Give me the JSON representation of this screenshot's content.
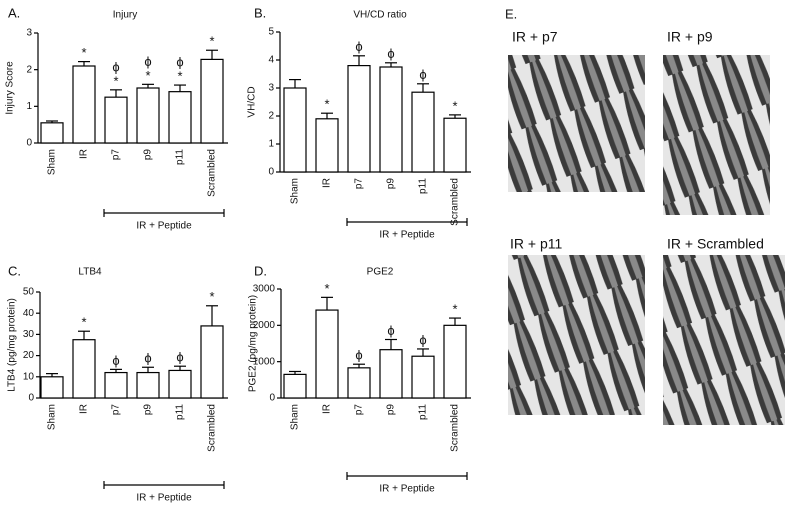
{
  "chart_data": [
    {
      "type": "bar",
      "panel": "A.",
      "title": "Injury",
      "y_label": "Injury Score",
      "categories": [
        "Sham",
        "IR",
        "p7",
        "p9",
        "p11",
        "Scrambled"
      ],
      "values": [
        0.55,
        2.1,
        1.25,
        1.5,
        1.4,
        2.28
      ],
      "errors": [
        0.05,
        0.12,
        0.2,
        0.1,
        0.18,
        0.25
      ],
      "annotations": [
        null,
        [
          "*"
        ],
        [
          "ϕ",
          "*"
        ],
        [
          "ϕ",
          "*"
        ],
        [
          "ϕ",
          "*"
        ],
        [
          "*"
        ]
      ],
      "group_label": "IR + Peptide",
      "color": "#ffffff",
      "ylim": [
        0,
        3
      ],
      "yticks": [
        0,
        1,
        2,
        3
      ]
    },
    {
      "type": "bar",
      "panel": "B.",
      "title": "VH/CD ratio",
      "y_label": "VH/CD",
      "categories": [
        "Sham",
        "IR",
        "p7",
        "p9",
        "p11",
        "Scrambled"
      ],
      "values": [
        3.0,
        1.9,
        3.8,
        3.75,
        2.85,
        1.92
      ],
      "errors": [
        0.3,
        0.2,
        0.35,
        0.15,
        0.3,
        0.12
      ],
      "annotations": [
        null,
        [
          "*"
        ],
        [
          "ϕ"
        ],
        [
          "ϕ"
        ],
        [
          "ϕ"
        ],
        [
          "*"
        ]
      ],
      "group_label": "IR  + Peptide",
      "color": "#ffffff",
      "ylim": [
        0,
        5
      ],
      "yticks": [
        0,
        1,
        2,
        3,
        4,
        5
      ]
    },
    {
      "type": "bar",
      "panel": "C.",
      "title": "LTB4",
      "y_label": "LTB4  (pg/mg protein)",
      "categories": [
        "Sham",
        "IR",
        "p7",
        "p9",
        "p11",
        "Scrambled"
      ],
      "values": [
        10,
        27.5,
        12,
        12,
        13,
        34
      ],
      "errors": [
        1.5,
        4,
        1.5,
        2.5,
        2,
        9.5
      ],
      "annotations": [
        null,
        [
          "*"
        ],
        [
          "ϕ"
        ],
        [
          "ϕ"
        ],
        [
          "ϕ"
        ],
        [
          "*"
        ]
      ],
      "group_label": "IR + Peptide",
      "color": "#ffffff",
      "ylim": [
        0,
        50
      ],
      "yticks": [
        0,
        10,
        20,
        30,
        40,
        50
      ]
    },
    {
      "type": "bar",
      "panel": "D.",
      "title": "PGE2",
      "y_label": "PGE2  (pg/mg protein)",
      "categories": [
        "Sham",
        "IR",
        "p7",
        "p9",
        "p11",
        "Scrambled"
      ],
      "values": [
        650,
        2420,
        830,
        1330,
        1150,
        2000
      ],
      "errors": [
        80,
        350,
        100,
        280,
        200,
        200
      ],
      "annotations": [
        null,
        [
          "*"
        ],
        [
          "ϕ"
        ],
        [
          "ϕ"
        ],
        [
          "ϕ"
        ],
        [
          "*"
        ]
      ],
      "group_label": "IR + Peptide",
      "color": "#ffffff",
      "ylim": [
        0,
        3000
      ],
      "yticks": [
        0,
        1000,
        2000,
        3000
      ]
    }
  ],
  "panel_e": {
    "label": "E.",
    "images": [
      "IR + p7",
      "IR + p9",
      "IR + p11",
      "IR + Scrambled"
    ]
  }
}
